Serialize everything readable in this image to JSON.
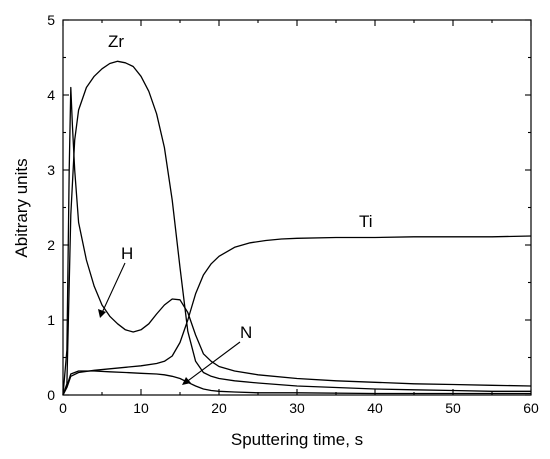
{
  "chart_data": {
    "type": "line",
    "title": "",
    "xlabel": "Sputtering time, s",
    "ylabel": "Abitrary units",
    "xlim": [
      0,
      60
    ],
    "ylim": [
      0,
      5
    ],
    "xticks": [
      0,
      10,
      20,
      30,
      40,
      50,
      60
    ],
    "yticks": [
      0,
      1,
      2,
      3,
      4,
      5
    ],
    "grid": false,
    "legend": "none",
    "series": [
      {
        "name": "Zr",
        "x": [
          0,
          0.5,
          1,
          1.5,
          2,
          3,
          4,
          5,
          6,
          7,
          8,
          9,
          10,
          11,
          12,
          13,
          14,
          15,
          16,
          17,
          18,
          19,
          20,
          22,
          25,
          30,
          35,
          40,
          45,
          50,
          55,
          60
        ],
        "y": [
          0,
          0.15,
          2.4,
          3.4,
          3.8,
          4.1,
          4.25,
          4.35,
          4.42,
          4.45,
          4.43,
          4.38,
          4.25,
          4.05,
          3.75,
          3.3,
          2.6,
          1.7,
          0.85,
          0.45,
          0.3,
          0.25,
          0.22,
          0.19,
          0.16,
          0.12,
          0.1,
          0.08,
          0.07,
          0.06,
          0.05,
          0.05
        ]
      },
      {
        "name": "H",
        "x": [
          0,
          0.5,
          0.8,
          1.0,
          1.2,
          1.5,
          2,
          3,
          4,
          5,
          6,
          7,
          8,
          9,
          10,
          11,
          12,
          13,
          14,
          15,
          16,
          17,
          18,
          19,
          20,
          22,
          25,
          30,
          35,
          40,
          45,
          50,
          55,
          60
        ],
        "y": [
          0,
          0.6,
          3.0,
          4.1,
          3.6,
          3.0,
          2.3,
          1.8,
          1.45,
          1.2,
          1.05,
          0.95,
          0.87,
          0.84,
          0.87,
          0.95,
          1.08,
          1.2,
          1.28,
          1.27,
          1.1,
          0.8,
          0.55,
          0.45,
          0.38,
          0.32,
          0.27,
          0.22,
          0.19,
          0.17,
          0.15,
          0.14,
          0.13,
          0.12
        ]
      },
      {
        "name": "Ti",
        "x": [
          0,
          0.5,
          1,
          2,
          4,
          6,
          8,
          10,
          12,
          13,
          14,
          15,
          16,
          17,
          18,
          19,
          20,
          22,
          24,
          26,
          28,
          30,
          35,
          40,
          45,
          50,
          55,
          60
        ],
        "y": [
          0,
          0.1,
          0.25,
          0.3,
          0.33,
          0.35,
          0.37,
          0.39,
          0.42,
          0.45,
          0.52,
          0.7,
          1.0,
          1.35,
          1.6,
          1.75,
          1.85,
          1.97,
          2.03,
          2.06,
          2.08,
          2.09,
          2.1,
          2.1,
          2.11,
          2.11,
          2.11,
          2.12
        ]
      },
      {
        "name": "N",
        "x": [
          0,
          0.5,
          1,
          2,
          4,
          6,
          8,
          10,
          12,
          13,
          14,
          15,
          16,
          17,
          18,
          19,
          20,
          22,
          25,
          30,
          40,
          50,
          60
        ],
        "y": [
          0,
          0.12,
          0.28,
          0.32,
          0.32,
          0.31,
          0.3,
          0.29,
          0.28,
          0.27,
          0.25,
          0.22,
          0.17,
          0.12,
          0.08,
          0.06,
          0.05,
          0.04,
          0.03,
          0.03,
          0.02,
          0.02,
          0.02
        ]
      }
    ],
    "annotations": {
      "zr": "Zr",
      "h": "H",
      "ti": "Ti",
      "n": "N"
    }
  }
}
